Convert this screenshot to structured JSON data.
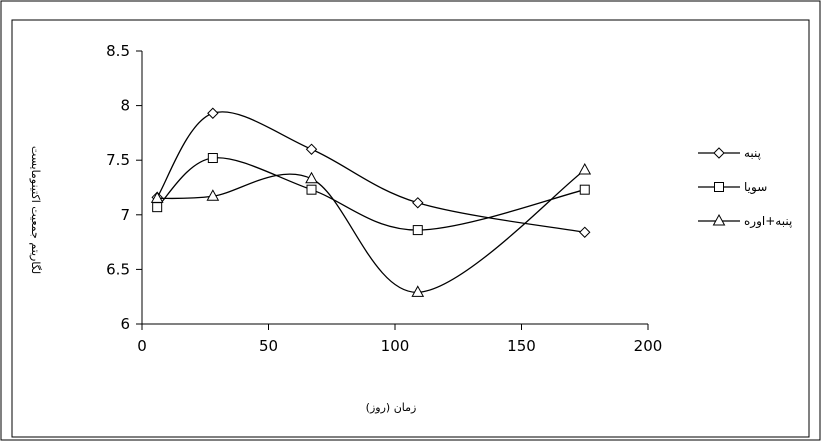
{
  "chart_data": {
    "type": "line",
    "xlabel": "زمان (روز)",
    "ylabel": "لگاریتم جمعیت اکتینومایست",
    "xlim": [
      0,
      200
    ],
    "ylim": [
      6,
      8.5
    ],
    "x_ticks": [
      "0",
      "50",
      "100",
      "150",
      "200"
    ],
    "y_ticks": [
      "6",
      "6.5",
      "7",
      "7.5",
      "8",
      "8.5"
    ],
    "legend_position": "right",
    "grid": false,
    "series": [
      {
        "name": "پنبه",
        "marker": "diamond",
        "x": [
          6,
          28,
          67,
          109,
          175
        ],
        "y": [
          7.16,
          7.93,
          7.6,
          7.11,
          6.84
        ]
      },
      {
        "name": "سویا",
        "marker": "square",
        "x": [
          6,
          28,
          67,
          109,
          175
        ],
        "y": [
          7.07,
          7.52,
          7.23,
          6.86,
          7.23
        ]
      },
      {
        "name": "پنبه+اوره",
        "marker": "triangle",
        "x": [
          6,
          28,
          67,
          109,
          175
        ],
        "y": [
          7.15,
          7.17,
          7.33,
          6.29,
          7.41
        ]
      }
    ]
  }
}
